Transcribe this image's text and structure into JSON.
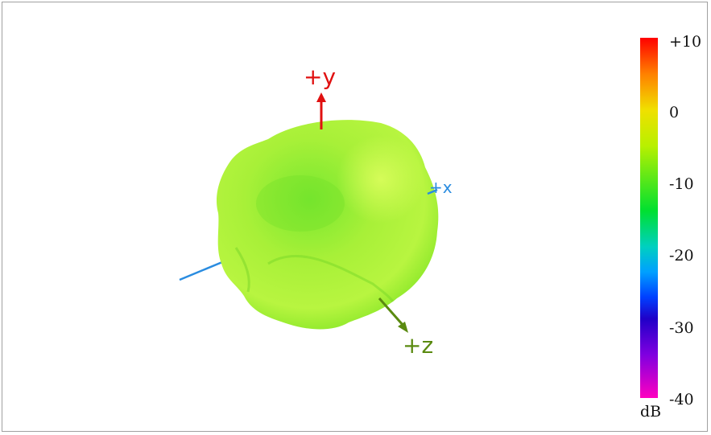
{
  "axes": {
    "y_label": "+y",
    "x_label": "+x",
    "z_label": "+z"
  },
  "colorbar": {
    "unit": "dB",
    "ticks": [
      "+10",
      "0",
      "-10",
      "-20",
      "-30",
      "-40"
    ],
    "range": [
      -40,
      10
    ]
  },
  "colors": {
    "y_axis": "#e01010",
    "x_axis": "#2a8ce0",
    "z_axis": "#5a8a10",
    "surface": "#96f02a"
  }
}
